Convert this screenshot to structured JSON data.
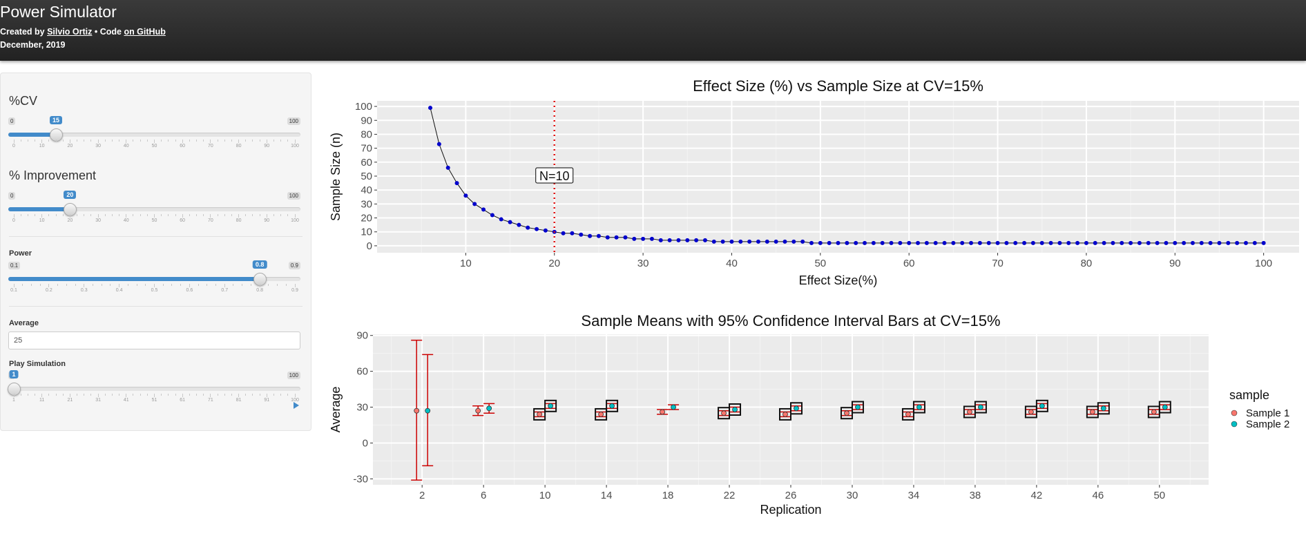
{
  "header": {
    "title": "Power Simulator",
    "created_by_prefix": "Created by ",
    "author_link": "Silvio Ortiz",
    "code_separator": " • Code ",
    "github_link": "on GitHub",
    "date": "December, 2019"
  },
  "sidebar": {
    "cv": {
      "label": "%CV",
      "min": "0",
      "max": "100",
      "value": "15",
      "fraction": 0.15,
      "tick_labels": [
        "0",
        "10",
        "20",
        "30",
        "40",
        "50",
        "60",
        "70",
        "80",
        "90",
        "100"
      ]
    },
    "improvement": {
      "label": "% Improvement",
      "min": "0",
      "max": "100",
      "value": "20",
      "fraction": 0.2,
      "tick_labels": [
        "0",
        "10",
        "20",
        "30",
        "40",
        "50",
        "60",
        "70",
        "80",
        "90",
        "100"
      ]
    },
    "power": {
      "label": "Power",
      "min": "0.1",
      "max": "0.9",
      "value": "0.8",
      "fraction": 0.875,
      "tick_labels": [
        "0.1",
        "0.2",
        "0.3",
        "0.4",
        "0.5",
        "0.6",
        "0.7",
        "0.8",
        "0.9"
      ]
    },
    "average": {
      "label": "Average",
      "value": "25"
    },
    "play": {
      "label": "Play Simulation",
      "min": "1",
      "max": "100",
      "value": "1",
      "fraction": 0,
      "tick_labels": [
        "1",
        "11",
        "21",
        "31",
        "41",
        "51",
        "61",
        "71",
        "81",
        "91",
        "100"
      ]
    },
    "play_icon": "play-icon"
  },
  "colors": {
    "accent": "#428bca",
    "panel_bg": "#ebebeb",
    "line_points": "#0000cc",
    "vline": "#e01010",
    "sample1": "#f8766d",
    "sample2": "#00bfc4",
    "errorbar": "#cc0000"
  },
  "chart_data": [
    {
      "type": "line",
      "title": "Effect Size (%) vs Sample Size at CV=15%",
      "xlabel": "Effect Size(%)",
      "ylabel": "Sample Size (n)",
      "xlim": [
        0,
        104
      ],
      "ylim": [
        -5,
        104
      ],
      "x_ticks": [
        10,
        20,
        30,
        40,
        50,
        60,
        70,
        80,
        90,
        100
      ],
      "y_ticks": [
        0,
        10,
        20,
        30,
        40,
        50,
        60,
        70,
        80,
        90,
        100
      ],
      "grid": true,
      "vline": {
        "x": 20,
        "style": "dotted"
      },
      "annotation": {
        "text": "N=10",
        "x": 20,
        "y": 50
      },
      "series": [
        {
          "x": [
            6,
            7,
            8,
            9,
            10,
            11,
            12,
            13,
            14,
            15,
            16,
            17,
            18,
            19,
            20,
            21,
            22,
            23,
            24,
            25,
            26,
            27,
            28,
            29,
            30,
            31,
            32,
            33,
            34,
            35,
            36,
            37,
            38,
            39,
            40,
            41,
            42,
            43,
            44,
            45,
            46,
            47,
            48,
            49,
            50,
            51,
            52,
            53,
            54,
            55,
            56,
            57,
            58,
            59,
            60,
            61,
            62,
            63,
            64,
            65,
            66,
            67,
            68,
            69,
            70,
            71,
            72,
            73,
            74,
            75,
            76,
            77,
            78,
            79,
            80,
            81,
            82,
            83,
            84,
            85,
            86,
            87,
            88,
            89,
            90,
            91,
            92,
            93,
            94,
            95,
            96,
            97,
            98,
            99,
            100
          ],
          "y": [
            99,
            73,
            56,
            45,
            36,
            30,
            26,
            22,
            19,
            17,
            15,
            13,
            12,
            11,
            10,
            9,
            9,
            8,
            7,
            7,
            6,
            6,
            6,
            5,
            5,
            5,
            4,
            4,
            4,
            4,
            4,
            4,
            3,
            3,
            3,
            3,
            3,
            3,
            3,
            3,
            3,
            3,
            3,
            2,
            2,
            2,
            2,
            2,
            2,
            2,
            2,
            2,
            2,
            2,
            2,
            2,
            2,
            2,
            2,
            2,
            2,
            2,
            2,
            2,
            2,
            2,
            2,
            2,
            2,
            2,
            2,
            2,
            2,
            2,
            2,
            2,
            2,
            2,
            2,
            2,
            2,
            2,
            2,
            2,
            2,
            2,
            2,
            2,
            2,
            2,
            2,
            2,
            2,
            2,
            2
          ]
        }
      ]
    },
    {
      "type": "scatter",
      "title": "Sample Means with 95% Confidence Interval Bars at CV=15%",
      "xlabel": "Replication",
      "ylabel": "Average",
      "categories": [
        "2",
        "6",
        "10",
        "14",
        "18",
        "22",
        "26",
        "30",
        "34",
        "38",
        "42",
        "46",
        "50"
      ],
      "ylim": [
        -35,
        91
      ],
      "y_ticks": [
        -30,
        0,
        30,
        60,
        90
      ],
      "grid": true,
      "legend": {
        "title": "sample",
        "position": "right"
      },
      "series": [
        {
          "name": "Sample 1",
          "values": [
            27,
            27,
            24,
            24,
            26,
            25,
            24,
            25,
            24,
            26,
            26,
            26,
            26
          ],
          "ci_low": [
            -31,
            23,
            22,
            22,
            24,
            23,
            22,
            23,
            22,
            24,
            24,
            24,
            24
          ],
          "ci_high": [
            86,
            31,
            26,
            26,
            28,
            27,
            26,
            27,
            26,
            28,
            28,
            28,
            28
          ]
        },
        {
          "name": "Sample 2",
          "values": [
            27,
            29,
            31,
            31,
            30,
            28,
            29,
            30,
            30,
            30,
            31,
            29,
            30
          ],
          "ci_low": [
            -19,
            25,
            29,
            29,
            28,
            26,
            27,
            28,
            28,
            28,
            29,
            27,
            28
          ],
          "ci_high": [
            74,
            33,
            33,
            33,
            32,
            30,
            31,
            32,
            32,
            32,
            33,
            31,
            32
          ]
        }
      ],
      "boxed_markers": [
        false,
        false,
        true,
        true,
        false,
        true,
        true,
        true,
        true,
        true,
        true,
        true,
        true
      ]
    }
  ]
}
